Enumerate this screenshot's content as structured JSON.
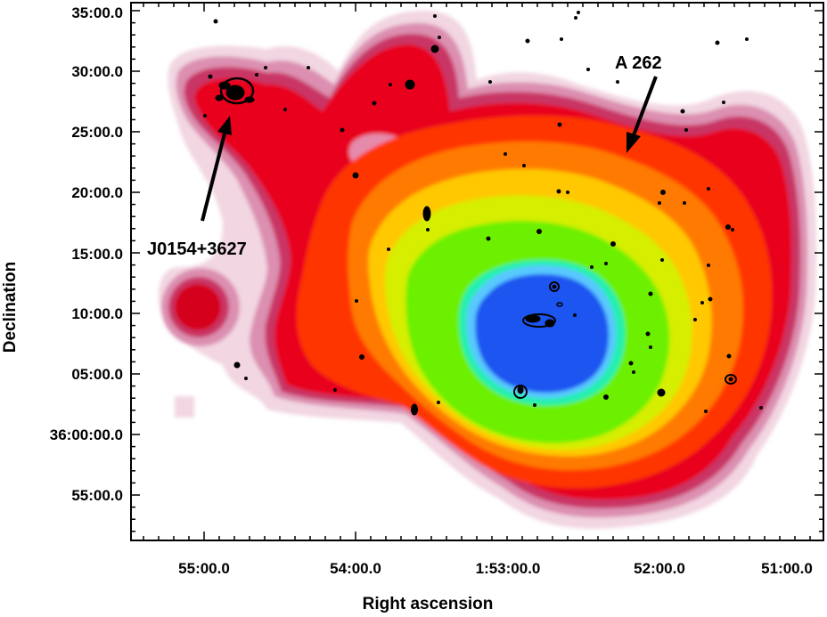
{
  "figure": {
    "x_axis_label": "Right ascension",
    "y_axis_label": "Declination",
    "x_ticks": [
      "55:00.0",
      "54:00.0",
      "1:53:00.0",
      "52:00.0",
      "51:00.0"
    ],
    "y_ticks": [
      "35:00.0",
      "30:00.0",
      "25:00.0",
      "20:00.0",
      "15:00.0",
      "10:00.0",
      "05:00.0",
      "36:00:00.0",
      "55:00.0"
    ],
    "annotations": [
      {
        "label": "A 262"
      },
      {
        "label": "J0154+3627"
      }
    ],
    "colormap": [
      "#f7e6ee",
      "#e7a3c0",
      "#c8386b",
      "#e0001c",
      "#ff3a00",
      "#ff7d00",
      "#ffc800",
      "#e0ee00",
      "#90f000",
      "#3ff000",
      "#00f0a0",
      "#40c8ff",
      "#1f55f0"
    ],
    "contour_color": "#000000"
  }
}
